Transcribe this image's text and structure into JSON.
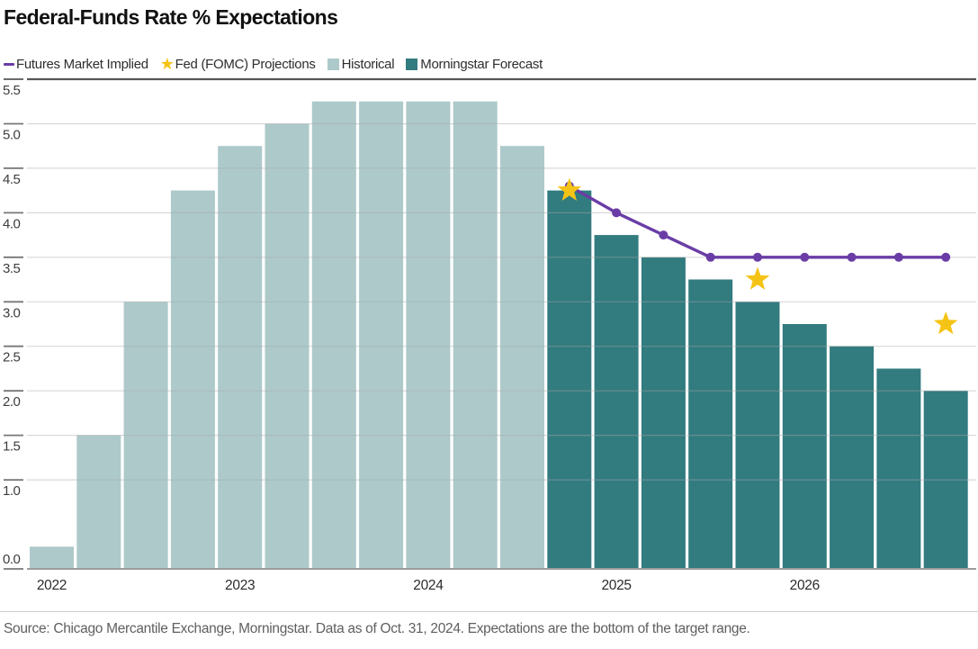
{
  "title": "Federal-Funds Rate % Expectations",
  "legend": [
    {
      "label": "Futures Market Implied",
      "marker": "dash",
      "color": "#6a3da6"
    },
    {
      "label": "Fed (FOMC) Projections",
      "marker": "star",
      "color": "#f5c315"
    },
    {
      "label": "Historical",
      "marker": "square",
      "color": "#adc9ca"
    },
    {
      "label": "Morningstar Forecast",
      "marker": "square",
      "color": "#327b7f"
    }
  ],
  "footer": {
    "source": "Source: Chicago Mercantile Exchange, Morningstar. Data as of Oct. 31, 2024. Expectations are the bottom of the target range."
  },
  "chart_data": {
    "type": "bar",
    "title": "Federal-Funds Rate % Expectations",
    "xlabel": "",
    "ylabel": "Federal-funds rate %",
    "ylim": [
      0,
      5.5
    ],
    "grid": "horizontal",
    "legend_position": "top-left",
    "x_categories": [
      "2022-Q1",
      "2022-Q2",
      "2022-Q3",
      "2022-Q4",
      "2023-Q1",
      "2023-Q2",
      "2023-Q3",
      "2023-Q4",
      "2024-Q1",
      "2024-Q2",
      "2024-Q3",
      "2024-Q4",
      "2025-Q1",
      "2025-Q2",
      "2025-Q3",
      "2025-Q4",
      "2026-Q1",
      "2026-Q2",
      "2026-Q3",
      "2026-Q4"
    ],
    "x_axis_labels": [
      {
        "index": 0,
        "label": "2022"
      },
      {
        "index": 4,
        "label": "2023"
      },
      {
        "index": 8,
        "label": "2024"
      },
      {
        "index": 12,
        "label": "2025"
      },
      {
        "index": 16,
        "label": "2026"
      }
    ],
    "y_axis_labels": [
      "5.5",
      "5.0",
      "4.5",
      "4.0",
      "3.5",
      "3.0",
      "2.5",
      "2.0",
      "1.5",
      "1.0",
      "0.0"
    ],
    "series": [
      {
        "name": "Historical",
        "type": "bar",
        "color": "#adc9ca",
        "values": [
          0.25,
          1.5,
          3.0,
          4.25,
          4.75,
          5.0,
          5.25,
          5.25,
          5.25,
          5.25,
          4.75,
          null,
          null,
          null,
          null,
          null,
          null,
          null,
          null,
          null
        ]
      },
      {
        "name": "Morningstar Forecast",
        "type": "bar",
        "color": "#327b7f",
        "values": [
          null,
          null,
          null,
          null,
          null,
          null,
          null,
          null,
          null,
          null,
          null,
          4.25,
          3.75,
          3.5,
          3.25,
          3.0,
          2.75,
          2.5,
          2.25,
          2.0
        ]
      },
      {
        "name": "Futures Market Implied",
        "type": "line",
        "color": "#6a3da6",
        "values": [
          null,
          null,
          null,
          null,
          null,
          null,
          null,
          null,
          null,
          null,
          null,
          4.3,
          4.0,
          3.75,
          3.5,
          3.5,
          3.5,
          3.5,
          3.5,
          3.5
        ]
      },
      {
        "name": "Fed (FOMC) Projections",
        "type": "scatter",
        "marker": "star",
        "color": "#f5c315",
        "points": [
          {
            "x": "2024-Q4",
            "y": 4.25
          },
          {
            "x": "2025-Q4",
            "y": 3.25
          },
          {
            "x": "2026-Q4",
            "y": 2.75
          }
        ]
      }
    ]
  }
}
